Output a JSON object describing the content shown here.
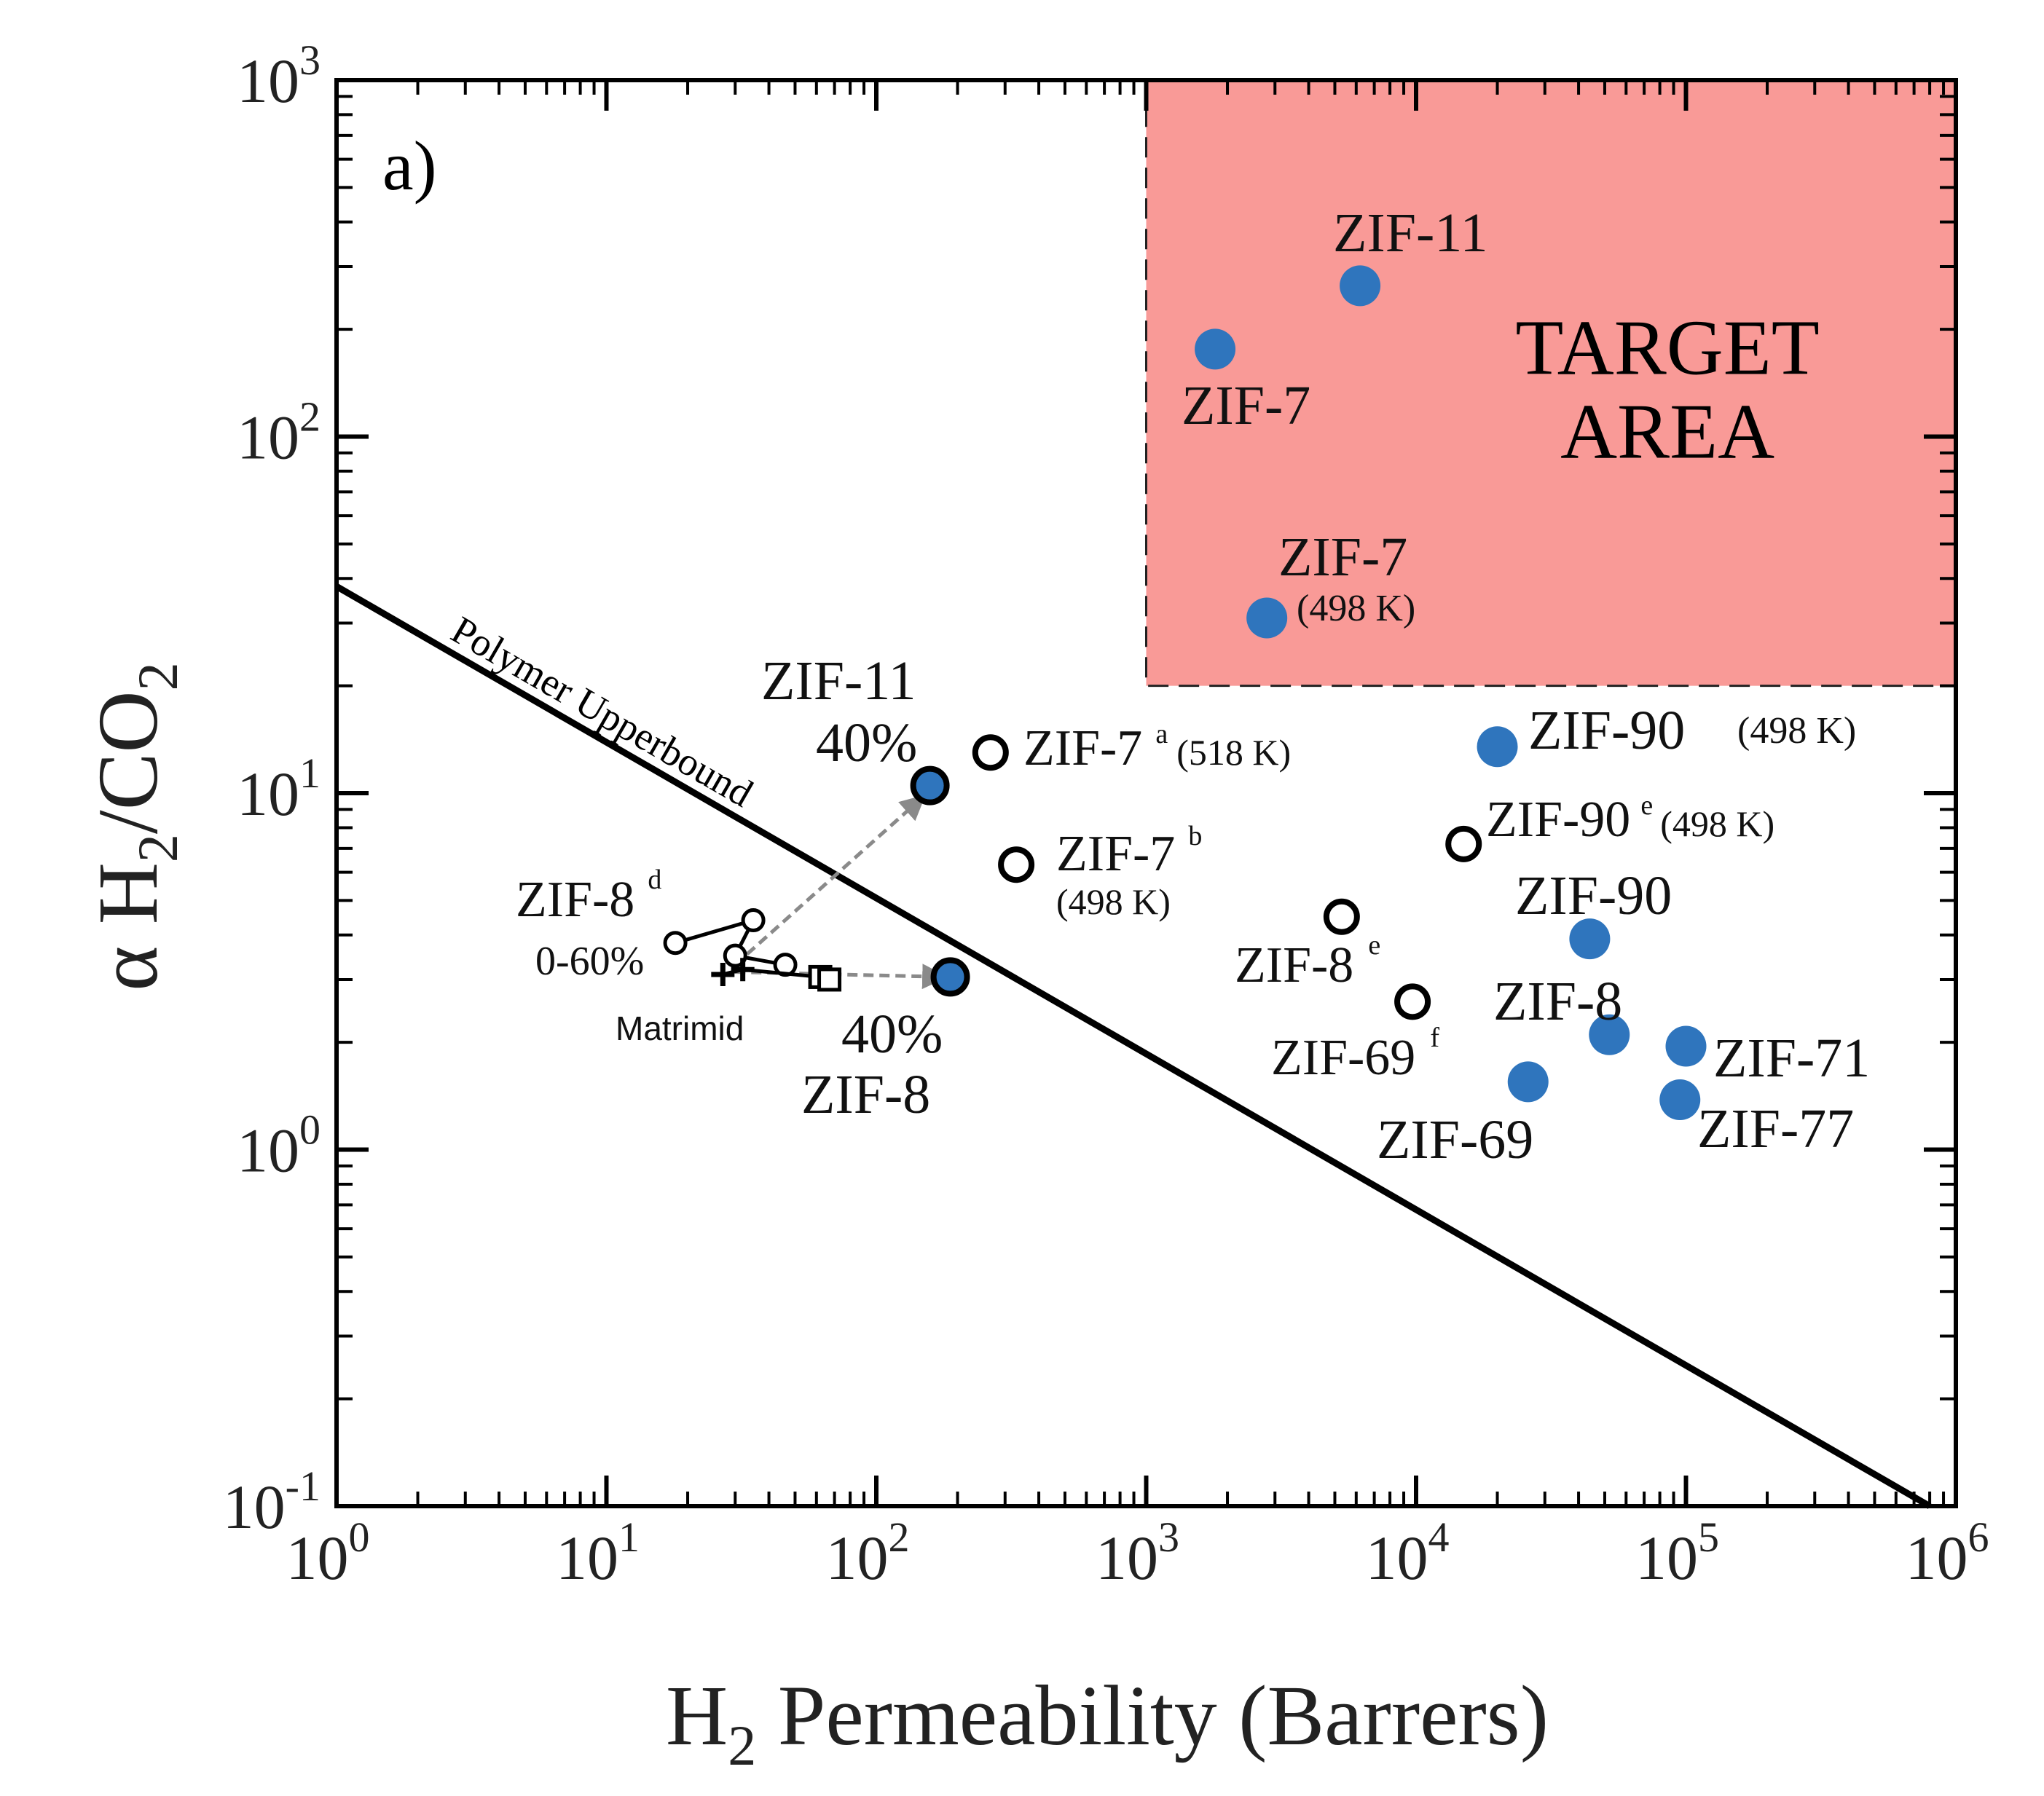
{
  "chart_data": {
    "type": "scatter",
    "panel_label": "a)",
    "xlabel_main": "H",
    "xlabel_sub": "2",
    "xlabel_rest": " Permeability (Barrers)",
    "ylabel_alpha": "α H",
    "ylabel_sub": "2",
    "ylabel_rest": "/CO",
    "ylabel_sub2": "2",
    "x_scale": "log",
    "y_scale": "log",
    "xlim": [
      1,
      1000000
    ],
    "ylim": [
      0.1,
      1000
    ],
    "x_ticks": [
      {
        "value": 1,
        "base": "10",
        "exp": "0"
      },
      {
        "value": 10,
        "base": "10",
        "exp": "1"
      },
      {
        "value": 100,
        "base": "10",
        "exp": "2"
      },
      {
        "value": 1000,
        "base": "10",
        "exp": "3"
      },
      {
        "value": 10000,
        "base": "10",
        "exp": "4"
      },
      {
        "value": 100000,
        "base": "10",
        "exp": "5"
      },
      {
        "value": 1000000,
        "base": "10",
        "exp": "6"
      }
    ],
    "y_ticks": [
      {
        "value": 0.1,
        "base": "10",
        "exp": "-1"
      },
      {
        "value": 1,
        "base": "10",
        "exp": "0"
      },
      {
        "value": 10,
        "base": "10",
        "exp": "1"
      },
      {
        "value": 100,
        "base": "10",
        "exp": "2"
      },
      {
        "value": 1000,
        "base": "10",
        "exp": "3"
      }
    ],
    "target_area": {
      "x_range": [
        1000,
        1000000
      ],
      "y_range": [
        20,
        1000
      ],
      "line1": "TARGET",
      "line2": "AREA",
      "color": "#f99a97"
    },
    "upperbound": {
      "label": "Polymer Upperbound",
      "start": [
        1,
        38
      ],
      "end": [
        800000,
        0.1
      ]
    },
    "colors": {
      "filled": "#2f75bd",
      "outline": "#000000",
      "arrow": "#8a8a8a"
    },
    "filled_points": [
      {
        "name": "ZIF-11",
        "x": 6200,
        "y": 265
      },
      {
        "name": "ZIF-7",
        "x": 1800,
        "y": 176
      },
      {
        "name": "ZIF-7 (498 K)",
        "x": 2800,
        "y": 31
      },
      {
        "name": "ZIF-90 (498 K)",
        "x": 20000,
        "y": 13.5
      },
      {
        "name": "ZIF-90",
        "x": 44000,
        "y": 3.9
      },
      {
        "name": "ZIF-8",
        "x": 52000,
        "y": 2.1
      },
      {
        "name": "ZIF-71",
        "x": 100000,
        "y": 1.95
      },
      {
        "name": "ZIF-77",
        "x": 95000,
        "y": 1.38
      },
      {
        "name": "ZIF-69",
        "x": 26000,
        "y": 1.55
      },
      {
        "name": "ZIF-11 40%",
        "x": 158,
        "y": 10.5
      },
      {
        "name": "ZIF-8 40%",
        "x": 188,
        "y": 3.05
      }
    ],
    "open_points": [
      {
        "name": "ZIF-7 a (518 K)",
        "x": 265,
        "y": 13
      },
      {
        "name": "ZIF-7 b (498 K)",
        "x": 330,
        "y": 6.3
      },
      {
        "name": "ZIF-90 e (498 K)",
        "x": 15000,
        "y": 7.2
      },
      {
        "name": "ZIF-8 e",
        "x": 5300,
        "y": 4.5
      },
      {
        "name": "ZIF-69 f",
        "x": 9700,
        "y": 2.6
      }
    ],
    "zif8d_series": {
      "name": "ZIF-8 d 0-60%",
      "points": [
        [
          18,
          3.8
        ],
        [
          35,
          4.4
        ],
        [
          30,
          3.5
        ],
        [
          46,
          3.3
        ]
      ]
    },
    "matrimid_points": [
      [
        27,
        3.1
      ],
      [
        32,
        3.2
      ],
      [
        62,
        3.05
      ],
      [
        67,
        3.0
      ]
    ],
    "arrows": [
      {
        "from": [
          30,
          3.3
        ],
        "to": [
          150,
          9.8
        ]
      },
      {
        "from": [
          30,
          3.15
        ],
        "to": [
          180,
          3.05
        ]
      }
    ],
    "labels": {
      "zif11_top": "ZIF-11",
      "zif7_top": "ZIF-7",
      "zif7_498": "ZIF-7",
      "zif7_498_temp": "(498 K)",
      "zif11_40_name": "ZIF-11",
      "zif11_40_pct": "40%",
      "zif7a": "ZIF-7",
      "zif7a_sup": "a",
      "zif7a_temp": "(518 K)",
      "zif7b": "ZIF-7",
      "zif7b_sup": "b",
      "zif7b_temp": "(498 K)",
      "zif8d": "ZIF-8",
      "zif8d_sup": "d",
      "zif8d_range": "0-60%",
      "matrimid": "Matrimid",
      "zif8_40_pct": "40%",
      "zif8_40_name": "ZIF-8",
      "zif90_498": "ZIF-90",
      "zif90_498_temp": "(498 K)",
      "zif90e": "ZIF-90",
      "zif90e_sup": "e",
      "zif90e_temp": "(498 K)",
      "zif90": "ZIF-90",
      "zif8e": "ZIF-8",
      "zif8e_sup": "e",
      "zif8": "ZIF-8",
      "zif69f": "ZIF-69",
      "zif69f_sup": "f",
      "zif71": "ZIF-71",
      "zif77": "ZIF-77",
      "zif69": "ZIF-69"
    }
  }
}
